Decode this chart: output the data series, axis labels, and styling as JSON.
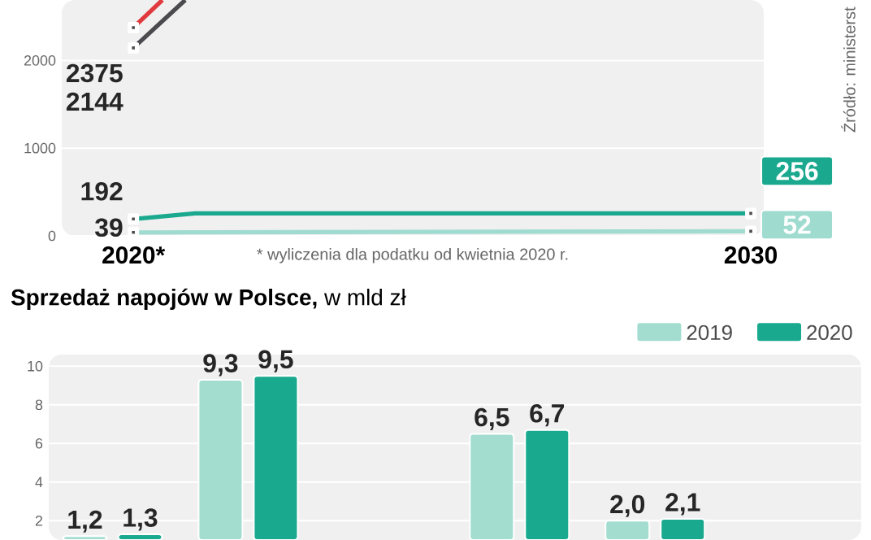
{
  "chart_data": [
    {
      "type": "line",
      "annotations": [
        "* wyliczenia dla podatku od kwietnia 2020 r.",
        "Źródło: ministerst"
      ],
      "series": [
        {
          "color": "#e03a3e",
          "x": [
            2020,
            2020.47
          ],
          "values": [
            2375,
            2690
          ],
          "value_labels": [
            "2375",
            null
          ]
        },
        {
          "color": "#4a4a4f",
          "x": [
            2020,
            2020.84
          ],
          "values": [
            2144,
            2690
          ],
          "value_labels": [
            "2144",
            null
          ]
        },
        {
          "color": "#1aa98f",
          "x": [
            2020,
            2021,
            2030
          ],
          "values": [
            192,
            256,
            256
          ],
          "value_labels": [
            "192",
            null,
            "256"
          ]
        },
        {
          "color": "#9fdccf",
          "x": [
            2020,
            2030
          ],
          "values": [
            39,
            52
          ],
          "value_labels": [
            "39",
            "52"
          ]
        }
      ],
      "xlim": [
        2018.84,
        2030.21
      ],
      "ylim": [
        0,
        2690
      ],
      "xticks": [
        {
          "value": 2020,
          "label": "2020*"
        },
        2030
      ],
      "yticks": [
        0,
        1000,
        2000
      ],
      "grid": "y",
      "marker": "square"
    },
    {
      "type": "bar",
      "title": "**Sprzedaż napojów w Polsce,** w mld zł",
      "categories": [
        null,
        null,
        null,
        null,
        null,
        null
      ],
      "series": [
        {
          "name": "2019",
          "color": "#a3ddd0",
          "values": [
            1.2,
            9.3,
            null,
            6.5,
            2.0,
            null
          ],
          "value_labels": [
            "1,2",
            "9,3",
            null,
            "6,5",
            "2,0",
            null
          ]
        },
        {
          "name": "2020",
          "color": "#19a98e",
          "values": [
            1.3,
            9.5,
            null,
            6.7,
            2.1,
            null
          ],
          "value_labels": [
            "1,3",
            "9,5",
            null,
            "6,7",
            "2,1",
            null
          ]
        }
      ],
      "ylim": [
        1.0,
        10.6
      ],
      "yticks": [
        2,
        4,
        6,
        8,
        10
      ],
      "grid": "y",
      "legend": "top right"
    }
  ]
}
